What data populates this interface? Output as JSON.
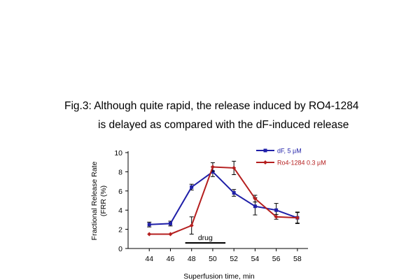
{
  "caption": {
    "line1": "Fig.3: Although quite rapid, the release induced by RO4-1284",
    "line2": "is delayed as compared with the dF-induced release"
  },
  "chart_data": {
    "type": "line",
    "xlabel": "Superfusion time, min",
    "ylabel_line1": "Fractional Release Rate",
    "ylabel_line2": "(FRR (%)",
    "x": [
      44,
      46,
      48,
      50,
      52,
      54,
      56,
      58
    ],
    "xlim": [
      42,
      59
    ],
    "ylim": [
      0,
      10
    ],
    "yticks": [
      0,
      2,
      4,
      6,
      8,
      10
    ],
    "grid": false,
    "legend_position": "top-right",
    "series": [
      {
        "name": "dF, 5 µM",
        "color": "#1f1fa8",
        "marker": "square",
        "values": [
          2.5,
          2.6,
          6.4,
          8.0,
          5.8,
          4.4,
          4.0,
          3.2
        ],
        "errors": [
          0.25,
          0.25,
          0.3,
          0.5,
          0.35,
          0.9,
          0.7,
          0.6
        ]
      },
      {
        "name": "Ro4-1284 0.3 µM",
        "color": "#b51f1f",
        "marker": "diamond",
        "values": [
          1.5,
          1.5,
          2.4,
          8.5,
          8.4,
          5.2,
          3.3,
          3.2
        ],
        "errors": [
          0.0,
          0.0,
          0.9,
          0.45,
          0.7,
          0.35,
          0.25,
          0.55
        ]
      }
    ],
    "annotation": {
      "label": "drug",
      "x_start": 47.4,
      "x_end": 51.2
    }
  }
}
